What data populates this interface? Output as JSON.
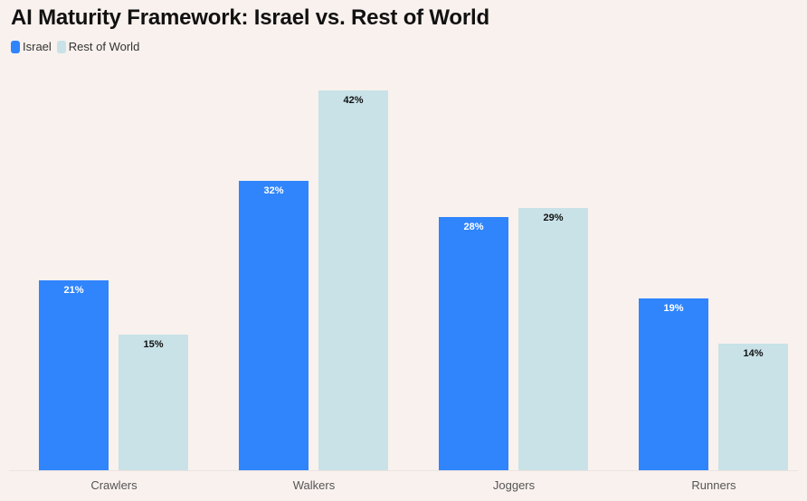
{
  "chart_data": {
    "type": "bar",
    "title": "AI Maturity Framework: Israel vs. Rest of World",
    "categories": [
      "Crawlers",
      "Walkers",
      "Joggers",
      "Runners"
    ],
    "series": [
      {
        "name": "Israel",
        "color": "#3085fc",
        "label_color": "#ffffff",
        "values": [
          21,
          32,
          28,
          19
        ]
      },
      {
        "name": "Rest of World",
        "color": "#c8e2e8",
        "label_color": "#111111",
        "values": [
          15,
          42,
          29,
          14
        ]
      }
    ],
    "value_suffix": "%",
    "xlabel": "",
    "ylabel": "",
    "ylim": [
      0,
      44
    ],
    "grid": false,
    "legend_position": "top-left"
  }
}
